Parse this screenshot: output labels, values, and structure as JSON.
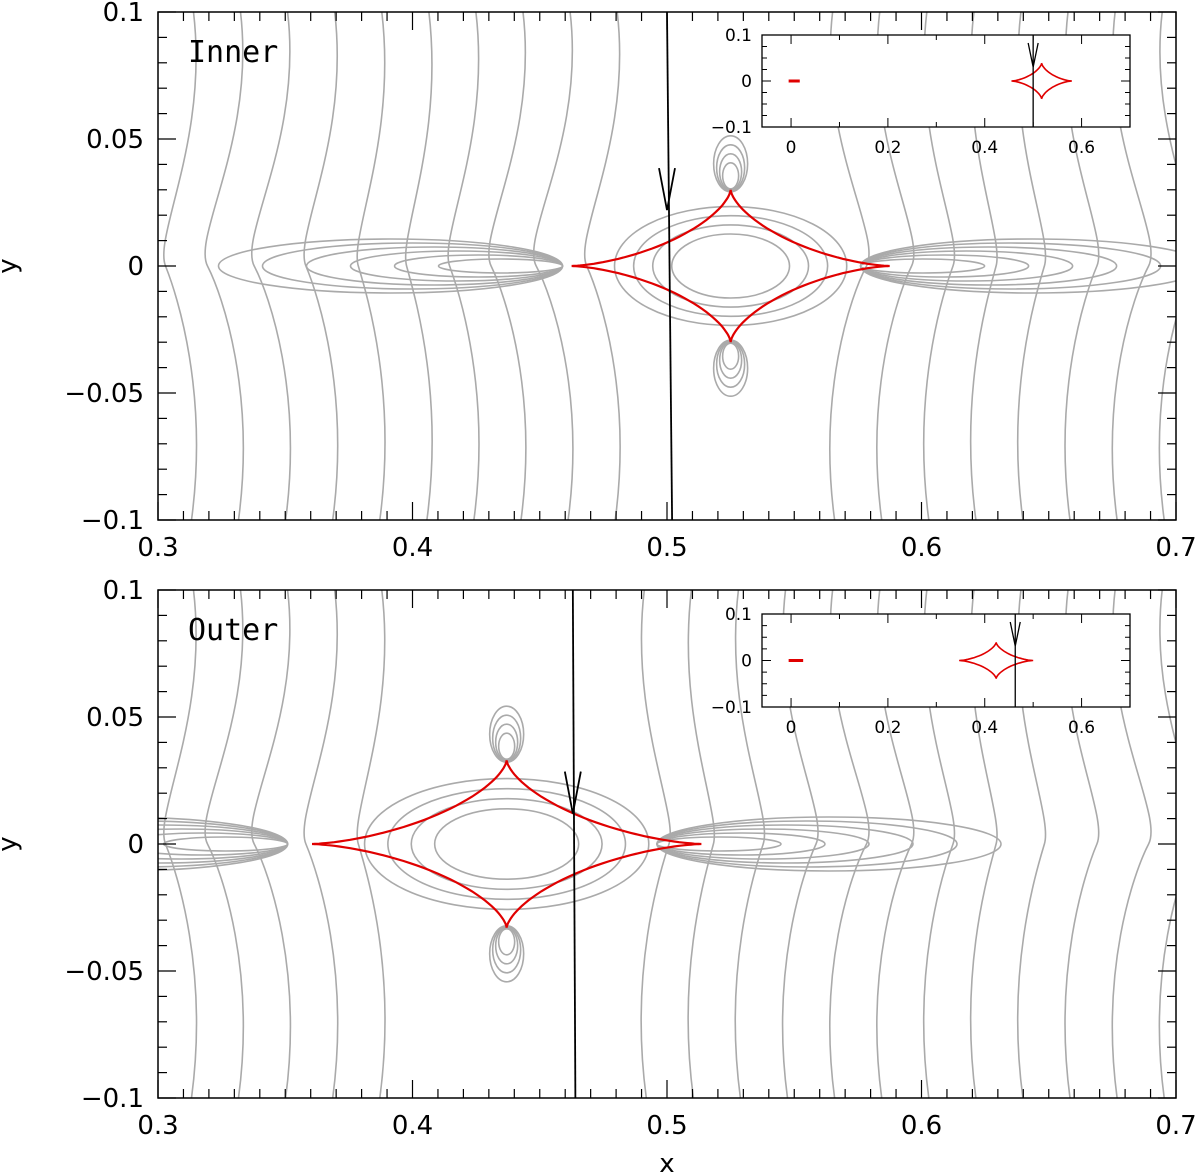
{
  "chart_data": [
    {
      "type": "line",
      "panel_label": "Inner",
      "xlabel": "",
      "ylabel": "y",
      "xlim": [
        0.3,
        0.7
      ],
      "ylim": [
        -0.1,
        0.1
      ],
      "x_tick_labels": [
        "0.3",
        "0.4",
        "0.5",
        "0.6",
        "0.7"
      ],
      "y_tick_labels": [
        "−0.1",
        "−0.05",
        "0",
        "0.05",
        "0.1"
      ],
      "colors": {
        "caustic": "#e00000",
        "contours": "#aaaaaa",
        "trajectory": "#000000"
      },
      "caustic": {
        "center": [
          0.525,
          0.0
        ],
        "x_left": 0.455,
        "x_right": 0.58,
        "y_top": 0.03,
        "y_bottom": -0.03
      },
      "trajectory": {
        "x_at_top": 0.5,
        "x_at_bottom": 0.502,
        "arrow_at": [
          0.5,
          0.022
        ]
      },
      "inset": {
        "xlim": [
          -0.06,
          0.7
        ],
        "ylim": [
          -0.1,
          0.1
        ],
        "x_tick_labels": [
          "0",
          "0.2",
          "0.4",
          "0.6"
        ],
        "y_tick_labels": [
          "−0.1",
          "0",
          "0.1"
        ],
        "central_caustic": {
          "x_left": -0.005,
          "x_right": 0.018
        },
        "planetary_caustic": {
          "x_left": 0.455,
          "x_right": 0.58,
          "half_height": 0.03
        },
        "trajectory_x": 0.5
      }
    },
    {
      "type": "line",
      "panel_label": "Outer",
      "xlabel": "x",
      "ylabel": "y",
      "xlim": [
        0.3,
        0.7
      ],
      "ylim": [
        -0.1,
        0.1
      ],
      "x_tick_labels": [
        "0.3",
        "0.4",
        "0.5",
        "0.6",
        "0.7"
      ],
      "y_tick_labels": [
        "−0.1",
        "−0.05",
        "0",
        "0.05",
        "0.1"
      ],
      "colors": {
        "caustic": "#e00000",
        "contours": "#aaaaaa",
        "trajectory": "#000000"
      },
      "caustic": {
        "center": [
          0.437,
          0.0
        ],
        "x_left": 0.347,
        "x_right": 0.5,
        "y_top": 0.033,
        "y_bottom": -0.033
      },
      "trajectory": {
        "x_at_top": 0.463,
        "x_at_bottom": 0.464,
        "arrow_at": [
          0.463,
          0.012
        ]
      },
      "inset": {
        "xlim": [
          -0.06,
          0.7
        ],
        "ylim": [
          -0.1,
          0.1
        ],
        "x_tick_labels": [
          "0",
          "0.2",
          "0.4",
          "0.6"
        ],
        "y_tick_labels": [
          "−0.1",
          "0",
          "0.1"
        ],
        "central_caustic": {
          "x_left": -0.005,
          "x_right": 0.025
        },
        "planetary_caustic": {
          "x_left": 0.347,
          "x_right": 0.5,
          "half_height": 0.03
        },
        "trajectory_x": 0.463
      }
    }
  ]
}
